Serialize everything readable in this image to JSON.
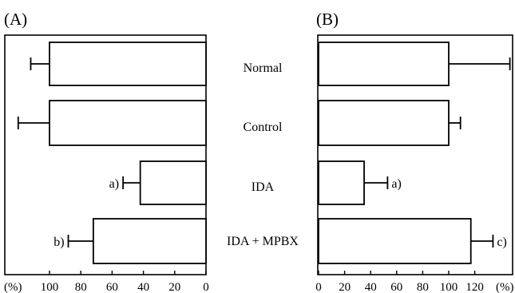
{
  "chart_data": [
    {
      "panel_label": "(A)",
      "type": "bar",
      "orientation": "horizontal",
      "direction": "right-to-left",
      "categories": [
        "Normal",
        "Control",
        "IDA",
        "IDA + MPBX"
      ],
      "values": [
        100,
        100,
        42,
        72
      ],
      "errors": [
        12,
        20,
        11,
        16
      ],
      "annotations": [
        "",
        "",
        "a)",
        "b)"
      ],
      "xlim": [
        0,
        130
      ],
      "xticks": [
        100,
        80,
        60,
        40,
        20,
        0
      ],
      "xunit": "(%)",
      "grid": false
    },
    {
      "panel_label": "(B)",
      "type": "bar",
      "orientation": "horizontal",
      "direction": "left-to-right",
      "categories": [
        "Normal",
        "Control",
        "IDA",
        "IDA + MPBX"
      ],
      "values": [
        100,
        100,
        35,
        117
      ],
      "errors": [
        47,
        9,
        18,
        17
      ],
      "annotations": [
        "",
        "",
        "a)",
        "c)"
      ],
      "xlim": [
        0,
        150
      ],
      "xticks": [
        0,
        20,
        40,
        60,
        80,
        100,
        120
      ],
      "xunit": "(%)",
      "grid": false
    }
  ]
}
